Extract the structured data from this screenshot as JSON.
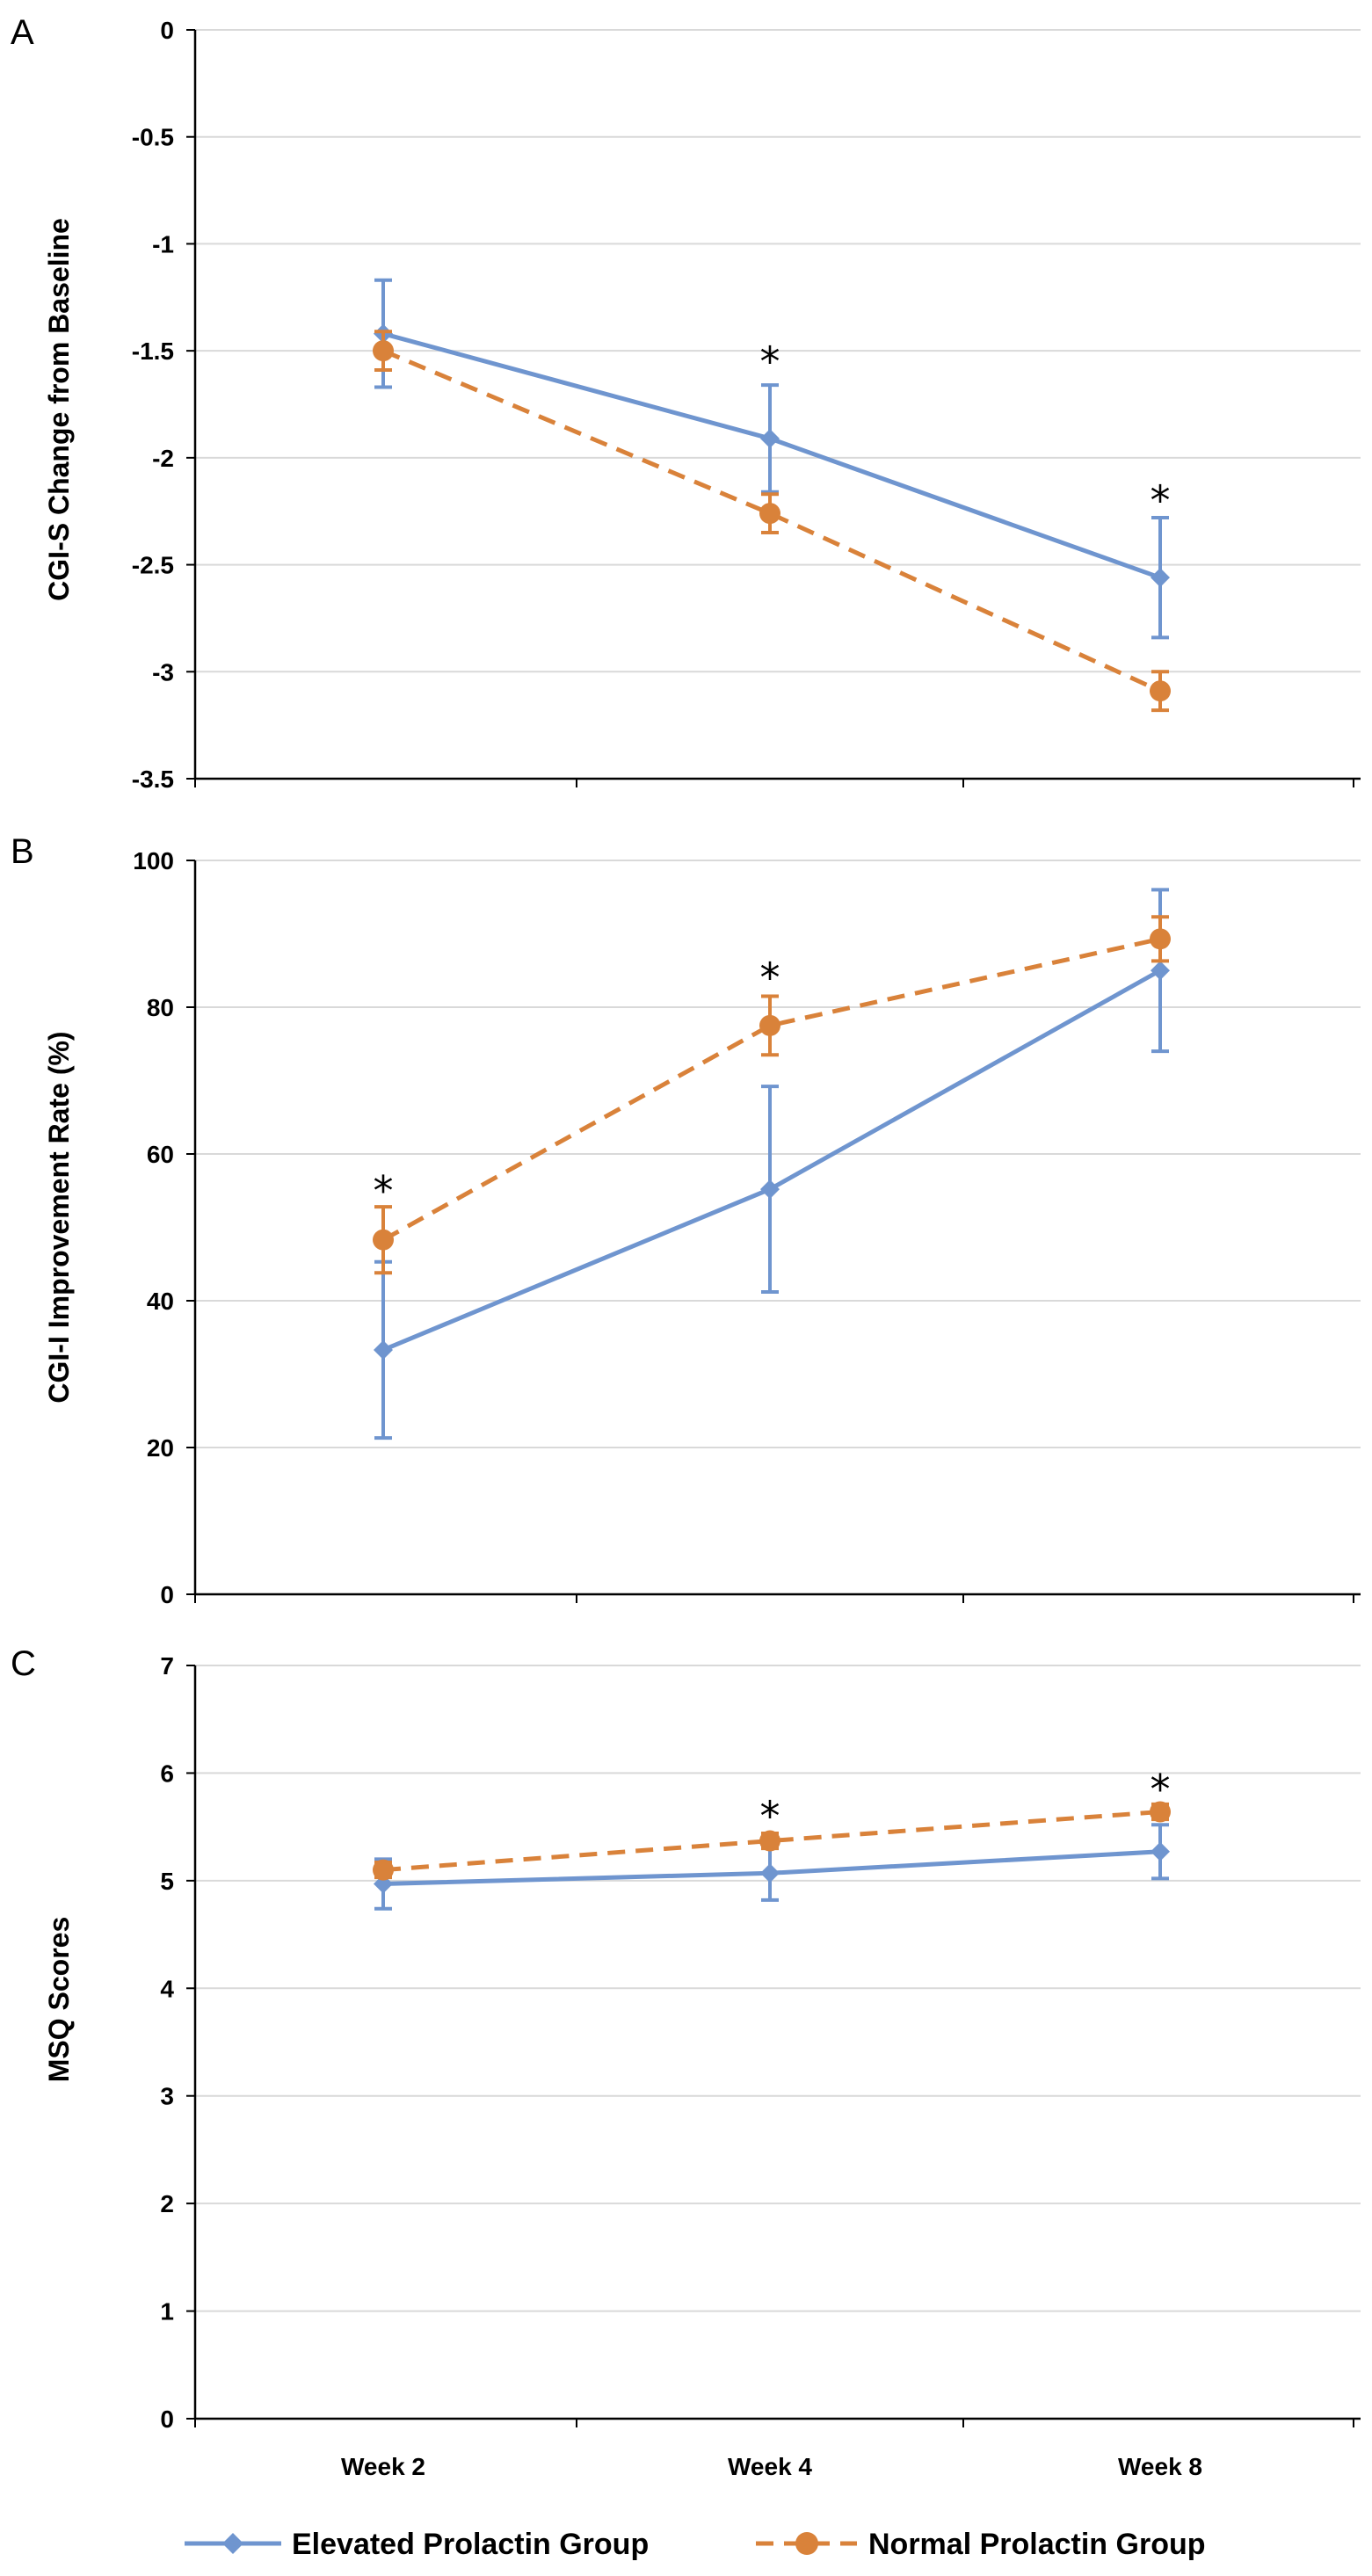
{
  "legend": {
    "series": [
      {
        "name": "Elevated Prolactin Group",
        "color": "#6f95cf",
        "marker": "diamond",
        "dash": "none"
      },
      {
        "name": "Normal Prolactin Group",
        "color": "#d9823a",
        "marker": "circle",
        "dash": "dashed"
      }
    ]
  },
  "chart_data": [
    {
      "panel": "A",
      "type": "line",
      "ylabel": "CGI-S Change from Baseline",
      "xlabel": "",
      "ylim": [
        -3.5,
        0
      ],
      "ytick_step": 0.5,
      "ytick_labels": [
        "0",
        "-0.5",
        "-1",
        "-1.5",
        "-2",
        "-2.5",
        "-3",
        "-3.5"
      ],
      "categories": [
        "Week 2",
        "Week 4",
        "Week 8"
      ],
      "series": [
        {
          "name": "Elevated Prolactin Group",
          "values": [
            -1.42,
            -1.91,
            -2.56
          ],
          "errors": [
            0.25,
            0.25,
            0.28
          ]
        },
        {
          "name": "Normal Prolactin Group",
          "values": [
            -1.5,
            -2.26,
            -3.09
          ],
          "errors": [
            0.09,
            0.09,
            0.09
          ]
        }
      ],
      "annotations": [
        {
          "category": "Week 4",
          "text": "*",
          "y": -1.55
        },
        {
          "category": "Week 8",
          "text": "*",
          "y": -2.2
        }
      ]
    },
    {
      "panel": "B",
      "type": "line",
      "ylabel": "CGI-I Improvement Rate (%)",
      "xlabel": "",
      "ylim": [
        0,
        100
      ],
      "ytick_step": 20,
      "ytick_labels": [
        "100",
        "80",
        "60",
        "40",
        "20",
        "0"
      ],
      "categories": [
        "Week 2",
        "Week 4",
        "Week 8"
      ],
      "series": [
        {
          "name": "Elevated Prolactin Group",
          "values": [
            33.3,
            55.2,
            85.0
          ],
          "errors": [
            12,
            14,
            11
          ]
        },
        {
          "name": "Normal Prolactin Group",
          "values": [
            48.3,
            77.5,
            89.3
          ],
          "errors": [
            4.5,
            4,
            3
          ]
        }
      ],
      "annotations": [
        {
          "category": "Week 2",
          "text": "*",
          "y": 55
        },
        {
          "category": "Week 4",
          "text": "*",
          "y": 84
        }
      ]
    },
    {
      "panel": "C",
      "type": "line",
      "ylabel": "MSQ Scores",
      "xlabel": "",
      "ylim": [
        0,
        7
      ],
      "ytick_step": 1,
      "ytick_labels": [
        "7",
        "6",
        "5",
        "4",
        "3",
        "2",
        "1",
        "0"
      ],
      "categories": [
        "Week 2",
        "Week 4",
        "Week 8"
      ],
      "xtick_labels": [
        "Week 2",
        "Week 4",
        "Week 8"
      ],
      "series": [
        {
          "name": "Elevated Prolactin Group",
          "values": [
            4.97,
            5.07,
            5.27
          ],
          "errors": [
            0.23,
            0.25,
            0.25
          ]
        },
        {
          "name": "Normal Prolactin Group",
          "values": [
            5.1,
            5.37,
            5.64
          ],
          "errors": [
            0.07,
            0.07,
            0.07
          ]
        }
      ],
      "annotations": [
        {
          "category": "Week 4",
          "text": "*",
          "y": 5.6
        },
        {
          "category": "Week 8",
          "text": "*",
          "y": 5.85
        }
      ]
    }
  ]
}
